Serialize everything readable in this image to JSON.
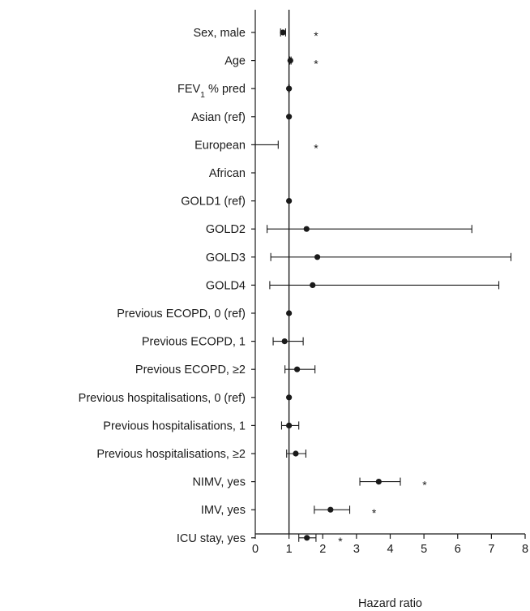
{
  "chart_data": {
    "type": "forest",
    "xlabel": "Hazard ratio",
    "xlim": [
      0,
      8
    ],
    "xticks": [
      0,
      1,
      2,
      3,
      4,
      5,
      6,
      7,
      8
    ],
    "reference_line": 1,
    "significance_marker": "*",
    "rows": [
      {
        "label": "Sex, male",
        "hr": 0.82,
        "lo": 0.75,
        "hi": 0.9,
        "sig": true
      },
      {
        "label": "Age",
        "hr": 1.04,
        "lo": 1.02,
        "hi": 1.06,
        "sig": true
      },
      {
        "label": "FEV1 % pred",
        "label_base": "FEV",
        "label_sub": "1",
        "label_rest": " % pred",
        "hr": 1.0,
        "lo": 0.99,
        "hi": 1.01,
        "sig": false
      },
      {
        "label": "Asian (ref)",
        "hr": 1.0,
        "lo": 1.0,
        "hi": 1.0,
        "sig": false
      },
      {
        "label": "European",
        "hr": null,
        "lo": 0.0,
        "hi": 0.68,
        "sig": true
      },
      {
        "label": "African",
        "hr": null,
        "lo": null,
        "hi": null,
        "sig": false
      },
      {
        "label": "GOLD1 (ref)",
        "hr": 1.0,
        "lo": 1.0,
        "hi": 1.0,
        "sig": false
      },
      {
        "label": "GOLD2",
        "hr": 1.52,
        "lo": 0.35,
        "hi": 6.42,
        "sig": false
      },
      {
        "label": "GOLD3",
        "hr": 1.84,
        "lo": 0.46,
        "hi": 7.58,
        "sig": false
      },
      {
        "label": "GOLD4",
        "hr": 1.7,
        "lo": 0.43,
        "hi": 7.22,
        "sig": false
      },
      {
        "label": "Previous ECOPD, 0 (ref)",
        "hr": 1.0,
        "lo": 1.0,
        "hi": 1.0,
        "sig": false
      },
      {
        "label": "Previous ECOPD, 1",
        "hr": 0.87,
        "lo": 0.53,
        "hi": 1.42,
        "sig": false
      },
      {
        "label": "Previous ECOPD, ≥2",
        "hr": 1.24,
        "lo": 0.88,
        "hi": 1.77,
        "sig": false
      },
      {
        "label": "Previous hospitalisations, 0 (ref)",
        "hr": 1.0,
        "lo": 1.0,
        "hi": 1.0,
        "sig": false
      },
      {
        "label": "Previous hospitalisations, 1",
        "hr": 1.0,
        "lo": 0.78,
        "hi": 1.29,
        "sig": false
      },
      {
        "label": "Previous hospitalisations, ≥2",
        "hr": 1.2,
        "lo": 0.93,
        "hi": 1.5,
        "sig": false
      },
      {
        "label": "NIMV, yes",
        "hr": 3.66,
        "lo": 3.1,
        "hi": 4.3,
        "sig": true
      },
      {
        "label": "IMV, yes",
        "hr": 2.23,
        "lo": 1.75,
        "hi": 2.8,
        "sig": true
      },
      {
        "label": "ICU stay, yes",
        "hr": 1.53,
        "lo": 1.29,
        "hi": 1.8,
        "sig": true
      }
    ]
  }
}
